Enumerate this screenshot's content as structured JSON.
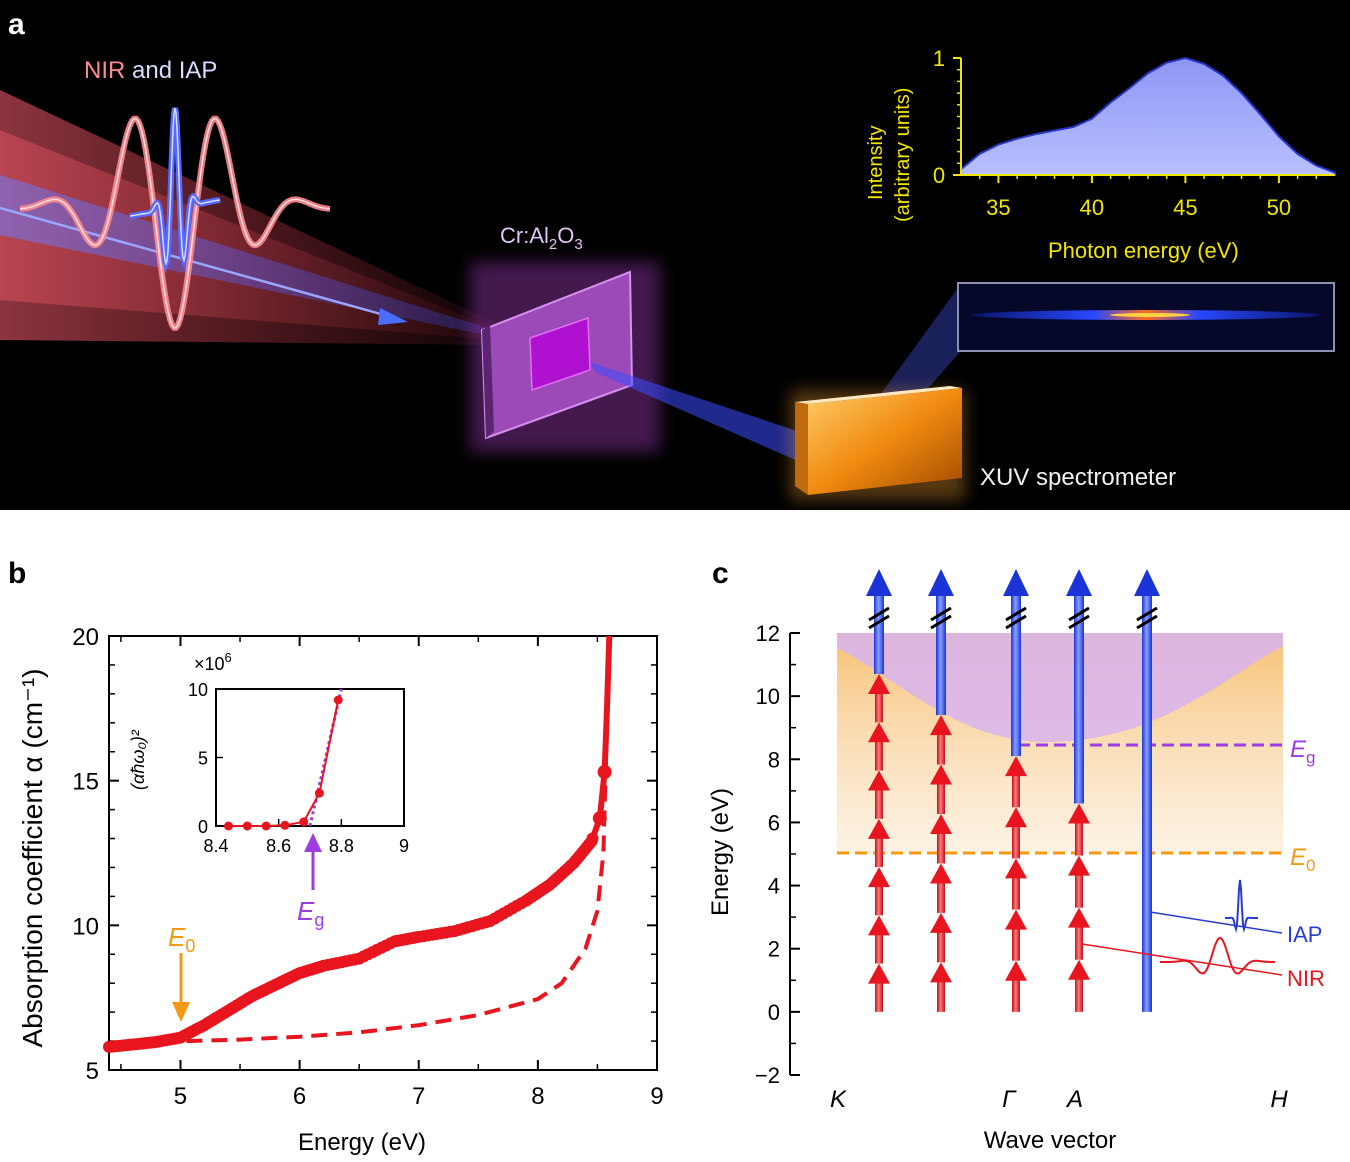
{
  "panel_a": {
    "label": "a",
    "beam_label_nir": "NIR",
    "beam_label_and": " and IAP",
    "sample_label_prefix": "Cr:Al",
    "sample_label_sub1": "2",
    "sample_label_mid": "O",
    "sample_label_sub2": "3",
    "spectrometer_label": "XUV spectrometer",
    "colors": {
      "nir": "#e8484c",
      "iap": "#4a5cf0",
      "sample": "#b04ad0",
      "spectrometer": "#f59a2a",
      "inset_axis": "#f2e600"
    },
    "inset": {
      "xlabel": "Photon energy (eV)",
      "ylabel_line1": "Intensity",
      "ylabel_line2": "(arbitrary units)",
      "xticks": [
        "35",
        "40",
        "45",
        "50"
      ],
      "yticks": [
        "0",
        "1"
      ]
    }
  },
  "panel_b": {
    "label": "b",
    "xlabel": "Energy (eV)",
    "ylabel": "Absorption coefficient α (cm⁻¹)",
    "xticks": [
      "5",
      "6",
      "7",
      "8",
      "9"
    ],
    "yticks": [
      "5",
      "10",
      "15",
      "20"
    ],
    "e0_label": "E",
    "e0_sub": "0",
    "eg_label": "E",
    "eg_sub": "g",
    "inset": {
      "ylabel": "(αħω₀)²",
      "multiplier": "×10",
      "multiplier_exp": "6",
      "xticks": [
        "8.4",
        "8.6",
        "8.8",
        "9"
      ],
      "yticks": [
        "0",
        "5",
        "10"
      ]
    }
  },
  "panel_c": {
    "label": "c",
    "xlabel": "Wave vector",
    "ylabel": "Energy (eV)",
    "yticks": [
      "−2",
      "0",
      "2",
      "4",
      "6",
      "8",
      "10",
      "12"
    ],
    "kpoints": [
      "K",
      "Γ",
      "A",
      "H"
    ],
    "eg_label": "E",
    "eg_sub": "g",
    "e0_label": "E",
    "e0_sub": "0",
    "iap_label": "IAP",
    "nir_label": "NIR"
  },
  "chart_data": [
    {
      "type": "area",
      "title": "",
      "xlabel": "Photon energy (eV)",
      "ylabel": "Intensity (arbitrary units)",
      "xlim": [
        33,
        53
      ],
      "ylim": [
        0,
        1
      ],
      "x": [
        33,
        34,
        35,
        36,
        37,
        38,
        39,
        40,
        41,
        42,
        43,
        44,
        45,
        46,
        47,
        48,
        49,
        50,
        51,
        52,
        53
      ],
      "y": [
        0.05,
        0.18,
        0.26,
        0.31,
        0.35,
        0.38,
        0.41,
        0.48,
        0.62,
        0.74,
        0.87,
        0.96,
        1.0,
        0.95,
        0.85,
        0.7,
        0.52,
        0.33,
        0.18,
        0.08,
        0.02
      ]
    },
    {
      "type": "line",
      "xlabel": "Energy (eV)",
      "ylabel": "Absorption coefficient α (cm⁻¹)",
      "xlim": [
        4.4,
        9
      ],
      "ylim": [
        5,
        20
      ],
      "series": [
        {
          "style": "solid-markers",
          "color": "#e8141e",
          "x": [
            4.4,
            4.6,
            4.8,
            5.0,
            5.2,
            5.4,
            5.6,
            5.8,
            6.0,
            6.2,
            6.5,
            6.8,
            7.0,
            7.3,
            7.6,
            7.9,
            8.1,
            8.3,
            8.45,
            8.52,
            8.56,
            8.58,
            8.6
          ],
          "y": [
            5.8,
            5.88,
            5.97,
            6.12,
            6.55,
            7.05,
            7.55,
            7.95,
            8.35,
            8.6,
            8.85,
            9.45,
            9.6,
            9.8,
            10.15,
            10.85,
            11.4,
            12.15,
            12.9,
            13.7,
            15.3,
            17.5,
            20
          ]
        },
        {
          "style": "dashed",
          "color": "#e8141e",
          "x": [
            5.05,
            5.5,
            6.0,
            6.5,
            7.0,
            7.5,
            8.0,
            8.2,
            8.4,
            8.5,
            8.55,
            8.6
          ],
          "y": [
            6.0,
            6.05,
            6.15,
            6.3,
            6.55,
            6.9,
            7.45,
            8.0,
            9.2,
            10.5,
            12.5,
            20
          ]
        }
      ]
    },
    {
      "type": "scatter",
      "xlabel": "",
      "ylabel": "(αħω₀)²",
      "xlim": [
        8.4,
        9
      ],
      "ylim": [
        0,
        10
      ],
      "series": [
        {
          "style": "markers",
          "color": "#e8141e",
          "x": [
            8.44,
            8.5,
            8.56,
            8.62,
            8.68,
            8.73,
            8.79
          ],
          "y": [
            0.0,
            0.0,
            0.0,
            0.05,
            0.3,
            2.4,
            9.2
          ]
        },
        {
          "style": "dotted-fit",
          "color": "#9b3de0",
          "x": [
            8.7,
            8.8
          ],
          "y": [
            0.0,
            10.0
          ]
        }
      ]
    },
    {
      "type": "diagram",
      "xlabel": "Wave vector",
      "ylabel": "Energy (eV)",
      "ylim": [
        -2,
        12
      ],
      "reference_lines": [
        {
          "name": "E_g",
          "y": 8.4,
          "color": "#9b3de0"
        },
        {
          "name": "E_0",
          "y": 5.05,
          "color": "#f59a2a"
        }
      ],
      "transitions": [
        {
          "kpoint": "K",
          "nir_photons": 7,
          "nir_top_eV": 10.7
        },
        {
          "kpoint": "between K and Γ",
          "nir_photons": 6,
          "nir_top_eV": 9.4
        },
        {
          "kpoint": "Γ",
          "nir_photons": 5,
          "nir_top_eV": 8.1
        },
        {
          "kpoint": "A",
          "nir_photons": 4,
          "nir_top_eV": 6.6
        },
        {
          "kpoint": "between A and H",
          "nir_photons": 0,
          "nir_top_eV": 0
        }
      ]
    }
  ]
}
